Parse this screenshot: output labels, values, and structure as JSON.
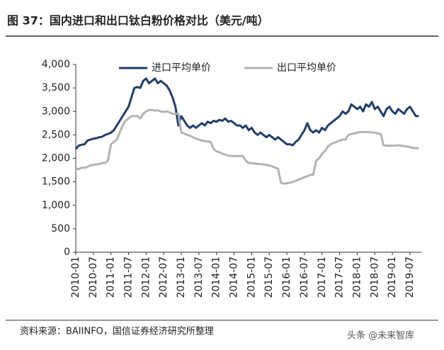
{
  "chart_data": {
    "type": "line",
    "title": "图 37：国内进口和出口钛白粉价格对比（美元/吨）",
    "source": "资料来源：BAIINFO，国信证券经济研究所整理",
    "watermark": "头条 @未来智库",
    "categories": [
      "2010-01",
      null,
      null,
      null,
      null,
      null,
      "2010-07",
      null,
      null,
      null,
      null,
      null,
      "2011-01",
      null,
      null,
      null,
      null,
      null,
      "2011-07",
      null,
      null,
      null,
      null,
      null,
      "2012-01",
      null,
      null,
      null,
      null,
      null,
      "2012-07",
      null,
      null,
      null,
      null,
      null,
      "2013-01",
      null,
      null,
      null,
      null,
      null,
      "2013-07",
      null,
      null,
      null,
      null,
      null,
      "2014-01",
      null,
      null,
      null,
      null,
      null,
      "2014-07",
      null,
      null,
      null,
      null,
      null,
      "2015-01",
      null,
      null,
      null,
      null,
      null,
      "2015-07",
      null,
      null,
      null,
      null,
      null,
      "2016-01",
      null,
      null,
      null,
      null,
      null,
      "2016-07",
      null,
      null,
      null,
      null,
      null,
      "2017-01",
      null,
      null,
      null,
      null,
      null,
      "2017-07",
      null,
      null,
      null,
      null,
      null,
      "2018-01",
      null,
      null,
      null,
      null,
      null,
      "2018-07",
      null,
      null,
      null,
      null,
      null,
      "2019-01",
      null,
      null,
      null,
      null,
      null,
      "2019-07",
      null,
      null,
      null
    ],
    "series": [
      {
        "name": "进口平均单价",
        "color": "#1f3d6b",
        "values": [
          2200,
          2270,
          2290,
          2300,
          2380,
          2400,
          2420,
          2430,
          2450,
          2460,
          2500,
          2520,
          2550,
          2600,
          2700,
          2800,
          2900,
          3000,
          3100,
          3300,
          3500,
          3520,
          3500,
          3650,
          3700,
          3600,
          3650,
          3700,
          3600,
          3650,
          3600,
          3550,
          3450,
          3300,
          3100,
          2700,
          2900,
          2800,
          2700,
          2650,
          2700,
          2650,
          2700,
          2750,
          2700,
          2780,
          2750,
          2800,
          2780,
          2820,
          2800,
          2850,
          2780,
          2800,
          2750,
          2700,
          2700,
          2650,
          2700,
          2600,
          2650,
          2550,
          2500,
          2550,
          2500,
          2450,
          2500,
          2450,
          2400,
          2450,
          2400,
          2350,
          2300,
          2300,
          2280,
          2350,
          2400,
          2500,
          2600,
          2750,
          2600,
          2550,
          2600,
          2550,
          2650,
          2600,
          2700,
          2750,
          2800,
          2850,
          2900,
          3000,
          2950,
          3000,
          3150,
          3100,
          3050,
          3100,
          3000,
          3150,
          3100,
          3200,
          3050,
          3100,
          3000,
          2900,
          3050,
          3100,
          3000,
          2950,
          3050,
          3000,
          2950,
          3050,
          3100,
          3000,
          2900,
          2900
        ]
      },
      {
        "name": "出口平均单价",
        "color": "#b3b3b3",
        "values": [
          1780,
          1770,
          1800,
          1800,
          1820,
          1850,
          1860,
          1870,
          1880,
          1900,
          1900,
          1950,
          2300,
          2350,
          2400,
          2550,
          2700,
          2800,
          2850,
          2900,
          2900,
          2900,
          2850,
          2950,
          3000,
          3030,
          3030,
          3020,
          3020,
          3000,
          2990,
          3000,
          2980,
          2950,
          2950,
          2950,
          2550,
          2530,
          2500,
          2480,
          2450,
          2420,
          2400,
          2380,
          2370,
          2360,
          2350,
          2200,
          2150,
          2130,
          2100,
          2080,
          2060,
          2050,
          2050,
          2050,
          2050,
          2050,
          1950,
          1900,
          1900,
          1890,
          1880,
          1880,
          1870,
          1860,
          1850,
          1830,
          1800,
          1780,
          1480,
          1460,
          1470,
          1480,
          1500,
          1520,
          1550,
          1570,
          1600,
          1620,
          1650,
          1650,
          1950,
          2000,
          2100,
          2150,
          2250,
          2300,
          2330,
          2350,
          2380,
          2400,
          2400,
          2500,
          2520,
          2530,
          2550,
          2560,
          2560,
          2560,
          2560,
          2550,
          2550,
          2530,
          2520,
          2280,
          2270,
          2270,
          2270,
          2270,
          2280,
          2270,
          2260,
          2250,
          2240,
          2220,
          2220,
          2210
        ]
      }
    ],
    "ylim": [
      0,
      4000
    ],
    "yticks": [
      0,
      500,
      {
        "value": 1000,
        "label": "1,000"
      },
      {
        "value": 1500,
        "label": "1,500"
      },
      {
        "value": 2000,
        "label": "2,000"
      },
      {
        "value": 2500,
        "label": "2,500"
      },
      {
        "value": 3000,
        "label": "3,000"
      },
      {
        "value": 3500,
        "label": "3,500"
      },
      {
        "value": 4000,
        "label": "4,000"
      }
    ],
    "grid": false
  }
}
